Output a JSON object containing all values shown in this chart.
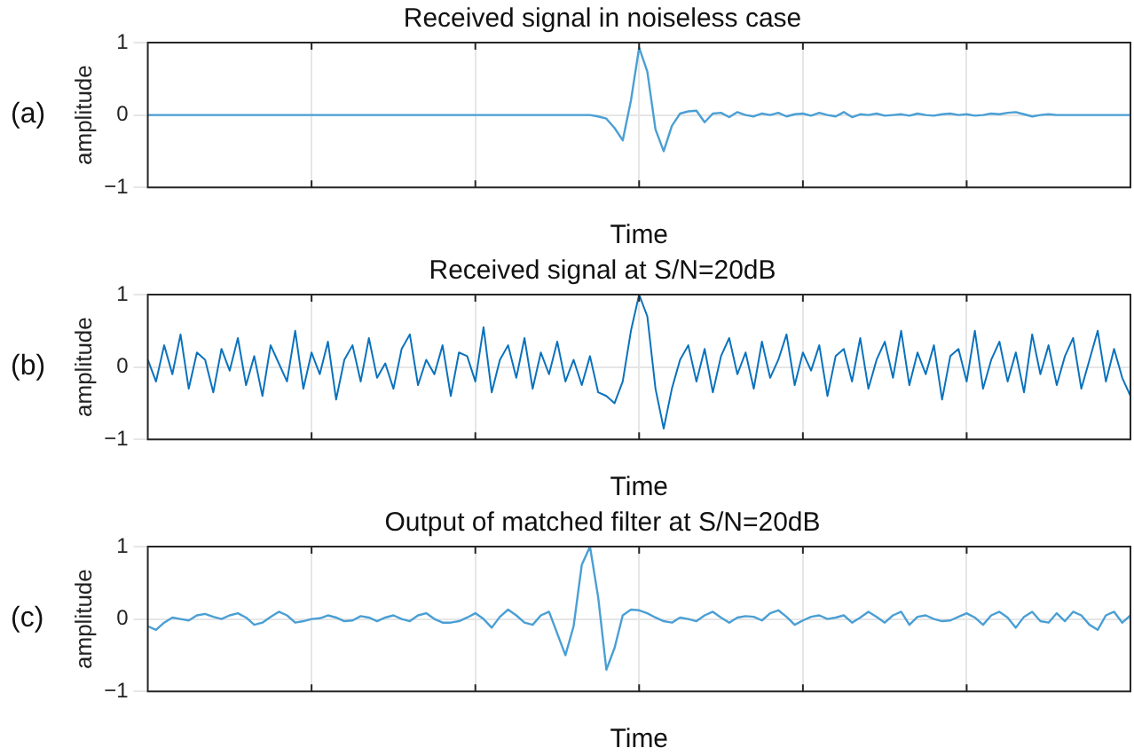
{
  "chart_data": [
    {
      "type": "line",
      "title": "Received signal in noiseless case",
      "xlabel": "Time",
      "ylabel": "amplitude",
      "annotations": [
        "(a)"
      ],
      "ylim": [
        -1,
        1
      ],
      "yticks": [
        -1,
        0,
        1
      ],
      "grid": true,
      "line_style": "solid",
      "marker": "none",
      "categories": [
        null,
        null,
        null,
        null,
        null,
        null,
        null,
        null,
        null,
        null,
        null,
        null,
        null,
        null,
        null,
        null,
        null,
        null,
        null,
        null,
        null,
        null,
        null,
        null,
        null,
        null,
        null,
        null,
        null,
        null,
        null,
        null,
        null,
        null,
        null,
        null,
        null,
        null,
        null,
        null,
        null,
        null,
        null,
        null,
        null,
        null,
        null,
        null,
        null,
        null,
        null,
        null,
        null,
        null,
        null,
        null,
        null,
        null,
        null,
        null,
        null,
        null,
        null,
        null,
        null,
        null,
        null,
        null,
        null,
        null,
        null,
        null,
        null,
        null,
        null,
        null,
        null,
        null,
        null,
        null,
        null,
        null,
        null,
        null,
        null,
        null,
        null,
        null,
        null,
        null,
        null,
        null,
        null,
        null,
        null,
        null,
        null,
        null,
        null,
        null,
        null,
        null,
        null,
        null,
        null,
        null,
        null,
        null,
        null,
        null,
        null,
        null,
        null,
        null,
        null,
        null,
        null,
        null,
        null,
        null,
        null
      ],
      "series": [
        {
          "color": "#4a9fd4",
          "values": [
            0,
            0,
            0,
            0,
            0,
            0,
            0,
            0,
            0,
            0,
            0,
            0,
            0,
            0,
            0,
            0,
            0,
            0,
            0,
            0,
            0,
            0,
            0,
            0,
            0,
            0,
            0,
            0,
            0,
            0,
            0,
            0,
            0,
            0,
            0,
            0,
            0,
            0,
            0,
            0,
            0,
            0,
            0,
            0,
            0,
            0,
            0,
            0,
            0,
            0,
            0,
            0,
            0,
            0,
            0,
            -0.02,
            -0.05,
            -0.18,
            -0.35,
            0.2,
            0.93,
            0.6,
            -0.2,
            -0.5,
            -0.15,
            0.02,
            0.05,
            0.06,
            -0.1,
            0.02,
            0.03,
            -0.03,
            0.04,
            0,
            -0.02,
            0.02,
            0,
            0.03,
            -0.02,
            0.01,
            0.02,
            -0.01,
            0.03,
            0,
            -0.02,
            0.04,
            -0.03,
            0.01,
            0,
            0.02,
            -0.01,
            0,
            0.01,
            -0.01,
            0.02,
            0,
            -0.01,
            0.01,
            0.02,
            0,
            0.01,
            -0.01,
            0,
            0.02,
            0.01,
            0.03,
            0.04,
            0.01,
            -0.02,
            0,
            0.01,
            0,
            0,
            0,
            0,
            0,
            0,
            0,
            0,
            0,
            0
          ]
        }
      ]
    },
    {
      "type": "line",
      "title": "Received signal at S/N=20dB",
      "xlabel": "Time",
      "ylabel": "amplitude",
      "annotations": [
        "(b)"
      ],
      "ylim": [
        -1,
        1
      ],
      "yticks": [
        -1,
        0,
        1
      ],
      "grid": true,
      "line_style": "solid",
      "marker": "none",
      "categories": [
        null,
        null,
        null,
        null,
        null,
        null,
        null,
        null,
        null,
        null,
        null,
        null,
        null,
        null,
        null,
        null,
        null,
        null,
        null,
        null,
        null,
        null,
        null,
        null,
        null,
        null,
        null,
        null,
        null,
        null,
        null,
        null,
        null,
        null,
        null,
        null,
        null,
        null,
        null,
        null,
        null,
        null,
        null,
        null,
        null,
        null,
        null,
        null,
        null,
        null,
        null,
        null,
        null,
        null,
        null,
        null,
        null,
        null,
        null,
        null,
        null,
        null,
        null,
        null,
        null,
        null,
        null,
        null,
        null,
        null,
        null,
        null,
        null,
        null,
        null,
        null,
        null,
        null,
        null,
        null,
        null,
        null,
        null,
        null,
        null,
        null,
        null,
        null,
        null,
        null,
        null,
        null,
        null,
        null,
        null,
        null,
        null,
        null,
        null,
        null,
        null,
        null,
        null,
        null,
        null,
        null,
        null,
        null,
        null,
        null,
        null,
        null,
        null,
        null,
        null,
        null,
        null,
        null,
        null,
        null,
        null
      ],
      "series": [
        {
          "color": "#0a72bd",
          "values": [
            0.1,
            -0.2,
            0.3,
            -0.1,
            0.45,
            -0.3,
            0.2,
            0.1,
            -0.35,
            0.25,
            -0.05,
            0.4,
            -0.25,
            0.15,
            -0.4,
            0.3,
            0.05,
            -0.2,
            0.5,
            -0.3,
            0.2,
            -0.1,
            0.35,
            -0.45,
            0.1,
            0.3,
            -0.2,
            0.4,
            -0.15,
            0.05,
            -0.3,
            0.25,
            0.45,
            -0.25,
            0.1,
            -0.1,
            0.3,
            -0.4,
            0.2,
            0.15,
            -0.2,
            0.55,
            -0.35,
            0.1,
            0.3,
            -0.15,
            0.4,
            -0.3,
            0.2,
            -0.1,
            0.35,
            -0.2,
            0.1,
            -0.25,
            0.15,
            -0.35,
            -0.4,
            -0.5,
            -0.2,
            0.5,
            1,
            0.7,
            -0.3,
            -0.85,
            -0.3,
            0.1,
            0.3,
            -0.2,
            0.25,
            -0.35,
            0.15,
            0.4,
            -0.1,
            0.2,
            -0.3,
            0.35,
            -0.15,
            0.1,
            0.45,
            -0.25,
            0.2,
            -0.05,
            0.3,
            -0.4,
            0.15,
            0.25,
            -0.2,
            0.4,
            -0.3,
            0.1,
            0.35,
            -0.15,
            0.5,
            -0.25,
            0.2,
            -0.1,
            0.3,
            -0.45,
            0.15,
            0.25,
            -0.2,
            0.5,
            -0.3,
            0.1,
            0.35,
            -0.2,
            0.2,
            -0.35,
            0.45,
            -0.1,
            0.3,
            -0.25,
            0.15,
            0.4,
            -0.3,
            0.1,
            0.5,
            -0.2,
            0.25,
            -0.15,
            -0.4
          ]
        }
      ]
    },
    {
      "type": "line",
      "title": "Output of matched filter at S/N=20dB",
      "xlabel": "Time",
      "ylabel": "amplitude",
      "annotations": [
        "(c)"
      ],
      "ylim": [
        -1,
        1
      ],
      "yticks": [
        -1,
        0,
        1
      ],
      "grid": true,
      "line_style": "solid",
      "marker": "none",
      "categories": [
        null,
        null,
        null,
        null,
        null,
        null,
        null,
        null,
        null,
        null,
        null,
        null,
        null,
        null,
        null,
        null,
        null,
        null,
        null,
        null,
        null,
        null,
        null,
        null,
        null,
        null,
        null,
        null,
        null,
        null,
        null,
        null,
        null,
        null,
        null,
        null,
        null,
        null,
        null,
        null,
        null,
        null,
        null,
        null,
        null,
        null,
        null,
        null,
        null,
        null,
        null,
        null,
        null,
        null,
        null,
        null,
        null,
        null,
        null,
        null,
        null,
        null,
        null,
        null,
        null,
        null,
        null,
        null,
        null,
        null,
        null,
        null,
        null,
        null,
        null,
        null,
        null,
        null,
        null,
        null,
        null,
        null,
        null,
        null,
        null,
        null,
        null,
        null,
        null,
        null,
        null,
        null,
        null,
        null,
        null,
        null,
        null,
        null,
        null,
        null,
        null,
        null,
        null,
        null,
        null,
        null,
        null,
        null,
        null,
        null,
        null,
        null,
        null,
        null,
        null,
        null,
        null,
        null,
        null,
        null,
        null
      ],
      "series": [
        {
          "color": "#4a9fd4",
          "values": [
            -0.1,
            -0.15,
            -0.05,
            0.02,
            0,
            -0.02,
            0.05,
            0.07,
            0.03,
            0,
            0.05,
            0.08,
            0.02,
            -0.08,
            -0.05,
            0.03,
            0.1,
            0.05,
            -0.05,
            -0.03,
            0,
            0.01,
            0.05,
            0.02,
            -0.03,
            -0.02,
            0.04,
            0.02,
            -0.03,
            0.02,
            0.05,
            0,
            -0.03,
            0.05,
            0.08,
            0,
            -0.05,
            -0.05,
            -0.03,
            0.02,
            0.08,
            0,
            -0.12,
            0.03,
            0.13,
            0.05,
            -0.05,
            -0.08,
            0.05,
            0.1,
            -0.2,
            -0.5,
            -0.1,
            0.75,
            1,
            0.3,
            -0.7,
            -0.4,
            0.05,
            0.13,
            0.12,
            0.08,
            0.02,
            -0.03,
            -0.05,
            0.02,
            0,
            -0.03,
            0.05,
            0.1,
            0.02,
            -0.05,
            0.02,
            0.04,
            0.03,
            -0.02,
            0.08,
            0.12,
            0.03,
            -0.08,
            -0.02,
            0.03,
            0.05,
            0,
            0.02,
            0.05,
            -0.05,
            0.02,
            0.1,
            0.03,
            -0.05,
            0.05,
            0.1,
            -0.08,
            0.03,
            0.05,
            0,
            -0.03,
            -0.02,
            0.03,
            0.08,
            0.02,
            -0.08,
            0.05,
            0.1,
            0.02,
            -0.12,
            0.03,
            0.1,
            -0.03,
            -0.05,
            0.08,
            -0.03,
            0.1,
            0.05,
            -0.08,
            -0.15,
            0.05,
            0.1,
            -0.05,
            0.05
          ]
        }
      ]
    }
  ]
}
